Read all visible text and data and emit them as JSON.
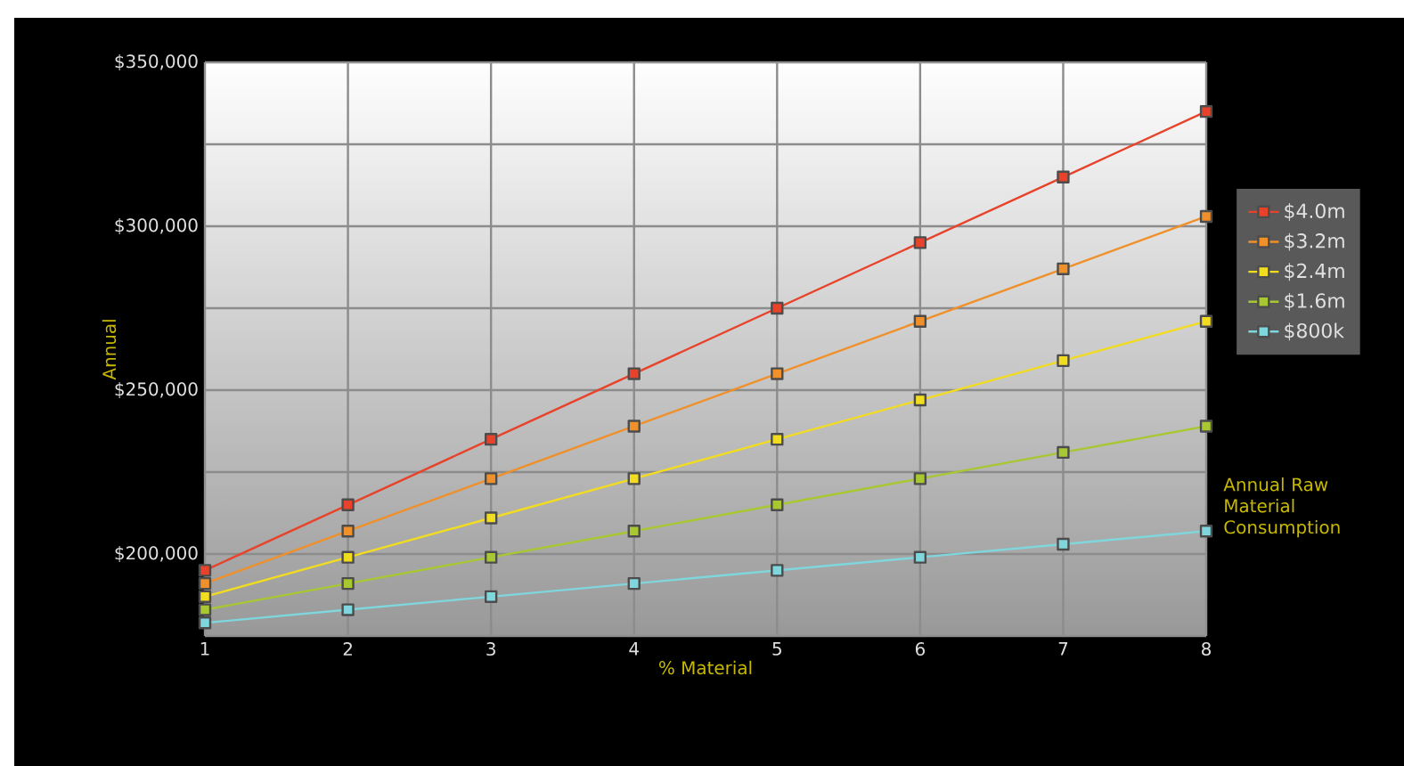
{
  "chart_data": {
    "type": "line",
    "xlabel": "% Material",
    "ylabel": "Annual",
    "x": [
      1,
      2,
      3,
      4,
      5,
      6,
      7,
      8
    ],
    "series": [
      {
        "name": "$4.0m",
        "color": "#e8432a",
        "values": [
          195000,
          215000,
          235000,
          255000,
          275000,
          295000,
          315000,
          335000
        ]
      },
      {
        "name": "$3.2m",
        "color": "#f0902a",
        "values": [
          191000,
          207000,
          223000,
          239000,
          255000,
          271000,
          287000,
          303000
        ]
      },
      {
        "name": "$2.4m",
        "color": "#f2dc20",
        "values": [
          187000,
          199000,
          211000,
          223000,
          235000,
          247000,
          259000,
          271000
        ]
      },
      {
        "name": "$1.6m",
        "color": "#a8c832",
        "values": [
          183000,
          191000,
          199000,
          207000,
          215000,
          223000,
          231000,
          239000
        ]
      },
      {
        "name": "$800k",
        "color": "#7fd6dc",
        "values": [
          179000,
          183000,
          187000,
          191000,
          195000,
          199000,
          203000,
          207000
        ]
      }
    ],
    "xlim": [
      1,
      8
    ],
    "xticks": [
      1,
      2,
      3,
      4,
      5,
      6,
      7,
      8
    ],
    "ylim": [
      175000,
      350000
    ],
    "yticks": [
      {
        "value": 175000,
        "label": null
      },
      {
        "value": 200000,
        "label": "$200,000"
      },
      {
        "value": 225000,
        "label": null
      },
      {
        "value": 250000,
        "label": "$250,000"
      },
      {
        "value": 275000,
        "label": null
      },
      {
        "value": 300000,
        "label": "$300,000"
      },
      {
        "value": 325000,
        "label": null
      },
      {
        "value": 350000,
        "label": "$350,000"
      }
    ],
    "annotations": [
      "Annual Raw Material Consumption"
    ],
    "grid": true,
    "legend": "right",
    "marker": "square",
    "line_style": "solid"
  }
}
